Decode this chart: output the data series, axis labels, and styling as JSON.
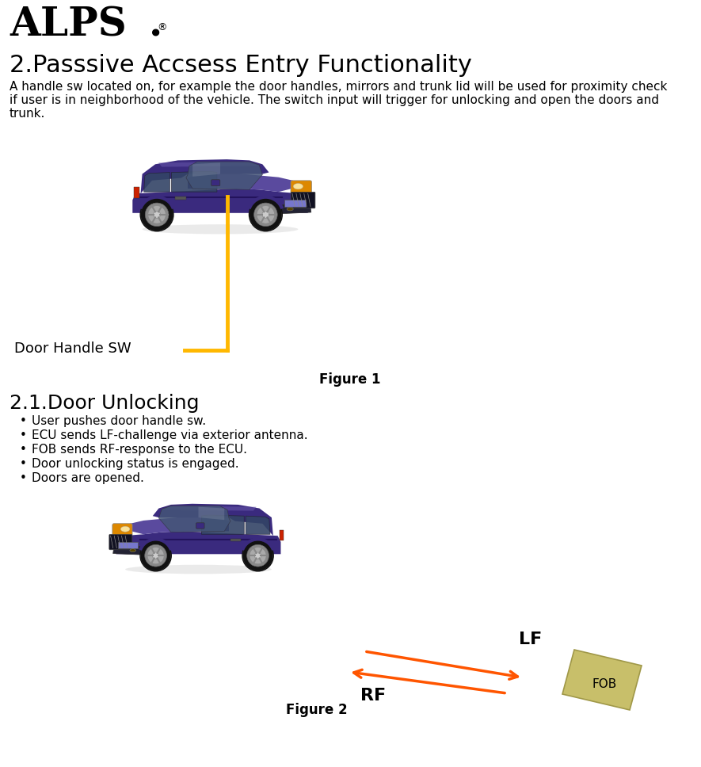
{
  "title": "2.Passsive Accsess Entry Functionality",
  "desc_line1": "A handle sw located on, for example the door handles, mirrors and trunk lid will be used for proximity check",
  "desc_line2": "if user is in neighborhood of the vehicle. The switch input will trigger for unlocking and open the doors and",
  "desc_line3": "trunk.",
  "section_title": "2.1.Door Unlocking",
  "bullets": [
    "User pushes door handle sw.",
    "ECU sends LF-challenge via exterior antenna.",
    "FOB sends RF-response to the ECU.",
    "Door unlocking status is engaged.",
    "Doors are opened."
  ],
  "figure1_caption": "Figure 1",
  "figure2_caption": "Figure 2",
  "door_handle_label": "Door Handle SW",
  "lf_label": "LF",
  "rf_label": "RF",
  "fob_label": "FOB",
  "arrow_color": "#FF5500",
  "fob_color": "#C8BF6A",
  "fob_edge_color": "#A09848",
  "fob_shadow_color": "#9A9040",
  "line_color_yellow": "#FFB800",
  "car_body_color": "#3a2a7e",
  "car_dark_color": "#1a0a4e",
  "car_light_color": "#5a4a9e",
  "car_highlight": "#6a5aae",
  "window_color": "#334466",
  "window_light": "#445577",
  "wheel_color": "#111111",
  "wheel_inner": "#333333",
  "rim_color": "#cccccc",
  "rim_spoke": "#aaaaaa",
  "headlight_amber": "#dd8800",
  "bumper_color": "#222233",
  "grille_color": "#111122",
  "plate_color": "#7777cc",
  "shadow_color": "#cccccc",
  "bg_color": "#FFFFFF",
  "alps_fontsize": 36,
  "title_fontsize": 22,
  "body_fontsize": 11,
  "section_fontsize": 18,
  "bullet_fontsize": 11,
  "caption_fontsize": 12,
  "label_fontsize": 14,
  "lf_rf_fontsize": 16
}
